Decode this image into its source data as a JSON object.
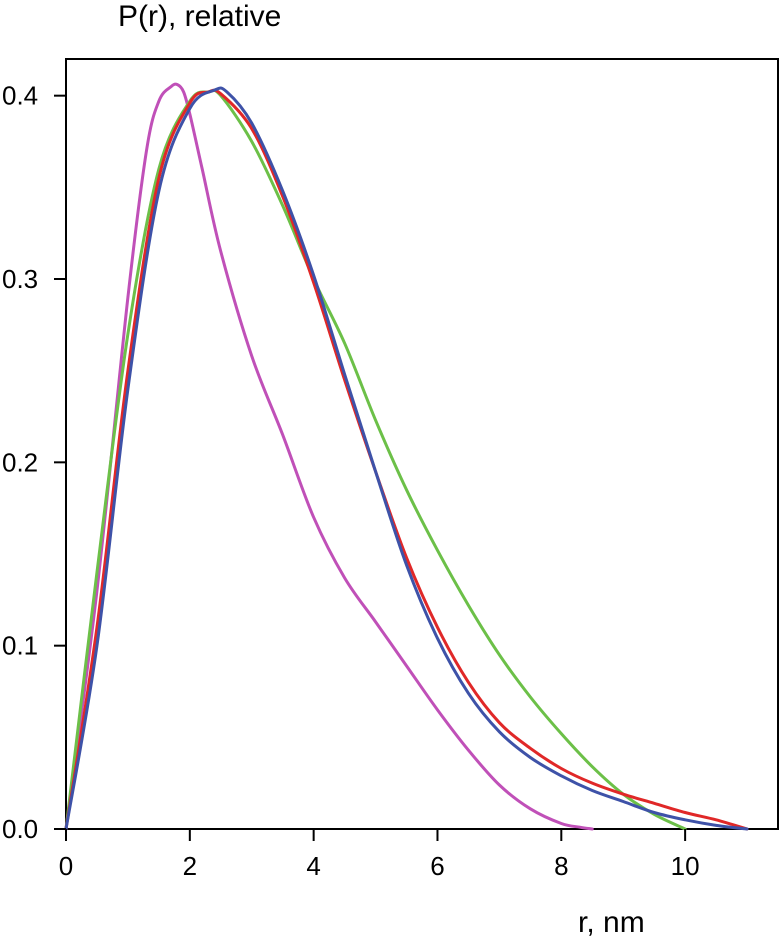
{
  "chart_data": {
    "type": "line",
    "title": "",
    "ylabel": "P(r), relative",
    "xlabel": "r, nm",
    "xlim": [
      0,
      11.5
    ],
    "ylim": [
      0,
      0.42
    ],
    "xticks": [
      0,
      2,
      4,
      6,
      8,
      10
    ],
    "xtick_labels": [
      "0",
      "2",
      "4",
      "6",
      "8",
      "10"
    ],
    "yticks": [
      0.0,
      0.1,
      0.2,
      0.3,
      0.4
    ],
    "ytick_labels": [
      "0.0",
      "0.1",
      "0.2",
      "0.3",
      "0.4"
    ],
    "grid": false,
    "legend": "none",
    "series": [
      {
        "color": "#c050b8",
        "x": [
          0,
          0.5,
          1.0,
          1.3,
          1.5,
          1.7,
          1.8,
          1.9,
          2.0,
          2.2,
          2.5,
          3.0,
          3.5,
          4.0,
          4.5,
          5.0,
          5.5,
          6.0,
          6.5,
          7.0,
          7.5,
          8.0,
          8.3,
          8.5
        ],
        "y": [
          0,
          0.13,
          0.29,
          0.37,
          0.397,
          0.405,
          0.406,
          0.402,
          0.39,
          0.36,
          0.315,
          0.258,
          0.215,
          0.17,
          0.137,
          0.113,
          0.089,
          0.065,
          0.043,
          0.024,
          0.011,
          0.003,
          0.001,
          0
        ]
      },
      {
        "color": "#6cc048",
        "x": [
          0,
          0.5,
          1.0,
          1.5,
          2.0,
          2.3,
          2.5,
          3.0,
          3.5,
          4.0,
          4.5,
          5.0,
          5.5,
          6.0,
          6.5,
          7.0,
          7.5,
          8.0,
          8.5,
          9.0,
          9.5,
          10.0
        ],
        "y": [
          0,
          0.14,
          0.27,
          0.36,
          0.397,
          0.402,
          0.4,
          0.375,
          0.34,
          0.3,
          0.265,
          0.223,
          0.185,
          0.152,
          0.122,
          0.095,
          0.072,
          0.052,
          0.034,
          0.019,
          0.008,
          0
        ]
      },
      {
        "color": "#e02828",
        "x": [
          0,
          0.5,
          1.0,
          1.5,
          2.0,
          2.3,
          2.5,
          3.0,
          3.5,
          4.0,
          4.5,
          5.0,
          5.5,
          6.0,
          6.5,
          7.0,
          7.5,
          8.0,
          8.5,
          9.0,
          9.5,
          10.0,
          10.5,
          11.0
        ],
        "y": [
          0,
          0.11,
          0.25,
          0.355,
          0.396,
          0.402,
          0.401,
          0.382,
          0.345,
          0.298,
          0.245,
          0.195,
          0.148,
          0.11,
          0.08,
          0.058,
          0.044,
          0.033,
          0.025,
          0.019,
          0.014,
          0.009,
          0.005,
          0
        ]
      },
      {
        "color": "#3e52a8",
        "x": [
          0,
          0.5,
          1.0,
          1.5,
          2.0,
          2.4,
          2.6,
          3.0,
          3.5,
          4.0,
          4.5,
          5.0,
          5.5,
          6.0,
          6.5,
          7.0,
          7.5,
          8.0,
          8.5,
          9.0,
          9.5,
          10.0,
          10.5,
          11.0
        ],
        "y": [
          0,
          0.1,
          0.24,
          0.348,
          0.393,
          0.403,
          0.402,
          0.385,
          0.348,
          0.302,
          0.248,
          0.195,
          0.144,
          0.104,
          0.074,
          0.053,
          0.039,
          0.029,
          0.021,
          0.015,
          0.009,
          0.005,
          0.002,
          0
        ]
      }
    ]
  }
}
